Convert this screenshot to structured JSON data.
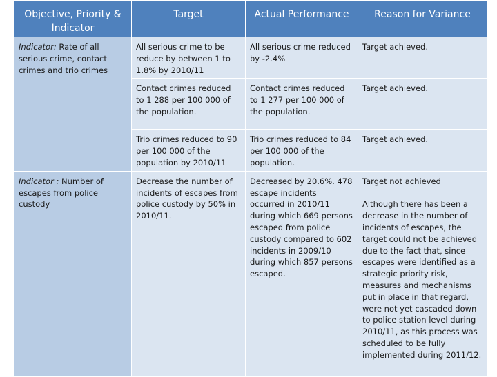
{
  "header": {
    "col1": "Objective, Priority & Indicator",
    "col2": "Target",
    "col3": "Actual Performance",
    "col4": "Reason for Variance"
  },
  "groups": [
    {
      "indicator_label": "Indicator:",
      "indicator_text": " Rate of all serious crime, contact crimes and trio crimes",
      "rows": [
        {
          "target": "All serious crime to be reduce by between 1 to 1.8% by 2010/11",
          "actual": "All serious crime reduced by -2.4%",
          "reason": "Target achieved."
        },
        {
          "target": "Contact crimes reduced to 1 288 per 100 000 of the population.",
          "actual": "Contact crimes reduced to 1 277 per 100 000 of the population.",
          "reason": "Target achieved."
        },
        {
          "target": "Trio crimes reduced to 90 per 100 000 of the population by 2010/11",
          "actual": "Trio crimes reduced to 84 per 100 000 of the population.",
          "reason": "Target achieved."
        }
      ]
    },
    {
      "indicator_label": "Indicator :",
      "indicator_text": " Number of escapes from police custody",
      "rows": [
        {
          "target": "Decrease the number of incidents of escapes from police custody by 50% in 2010/11.",
          "actual": "Decreased by 20.6%. 478 escape incidents occurred in 2010/11 during which 669 persons escaped from police custody compared to 602 incidents in 2009/10 during which 857 persons escaped.",
          "reason_line1": "Target not achieved",
          "reason_line2": "Although there has been a decrease in the number of incidents of escapes, the target could not be achieved due to the fact that, since escapes were identified as a strategic priority risk, measures and mechanisms put in place in that regard, were not yet cascaded down to police station level during 2010/11, as this process was scheduled to be fully implemented during 2011/12."
        }
      ]
    }
  ]
}
